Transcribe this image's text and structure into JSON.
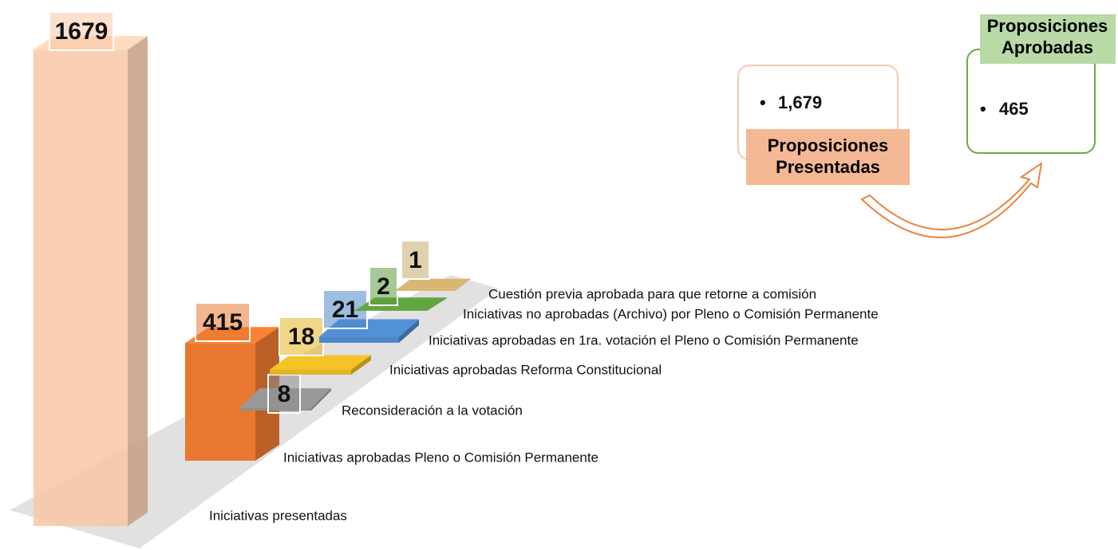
{
  "chart_data": {
    "type": "bar3d",
    "categories": [
      "Iniciativas presentadas",
      "Iniciativas aprobadas  Pleno o  Comisión Permanente",
      "Reconsideración a la votación",
      "Iniciativas aprobadas Reforma Constitucional",
      "Iniciativas aprobadas en 1ra. votación el Pleno o  Comisión Permanente",
      "Iniciativas no aprobadas (Archivo) por Pleno o Comisión Permanente",
      "Cuestión previa aprobada para que retorne a  comisión"
    ],
    "values": [
      1679,
      415,
      8,
      18,
      21,
      2,
      1
    ],
    "colors": [
      "#f8c7a6",
      "#e8782f",
      "#8e8e8e",
      "#e3b522",
      "#4c86c8",
      "#5b9a3c",
      "#c9a96a"
    ]
  },
  "summary": {
    "boxes": [
      {
        "title": "Proposiciones Presentadas",
        "items": [
          "1,679"
        ]
      },
      {
        "title": "Proposiciones Aprobadas",
        "items": [
          "465"
        ]
      }
    ]
  }
}
